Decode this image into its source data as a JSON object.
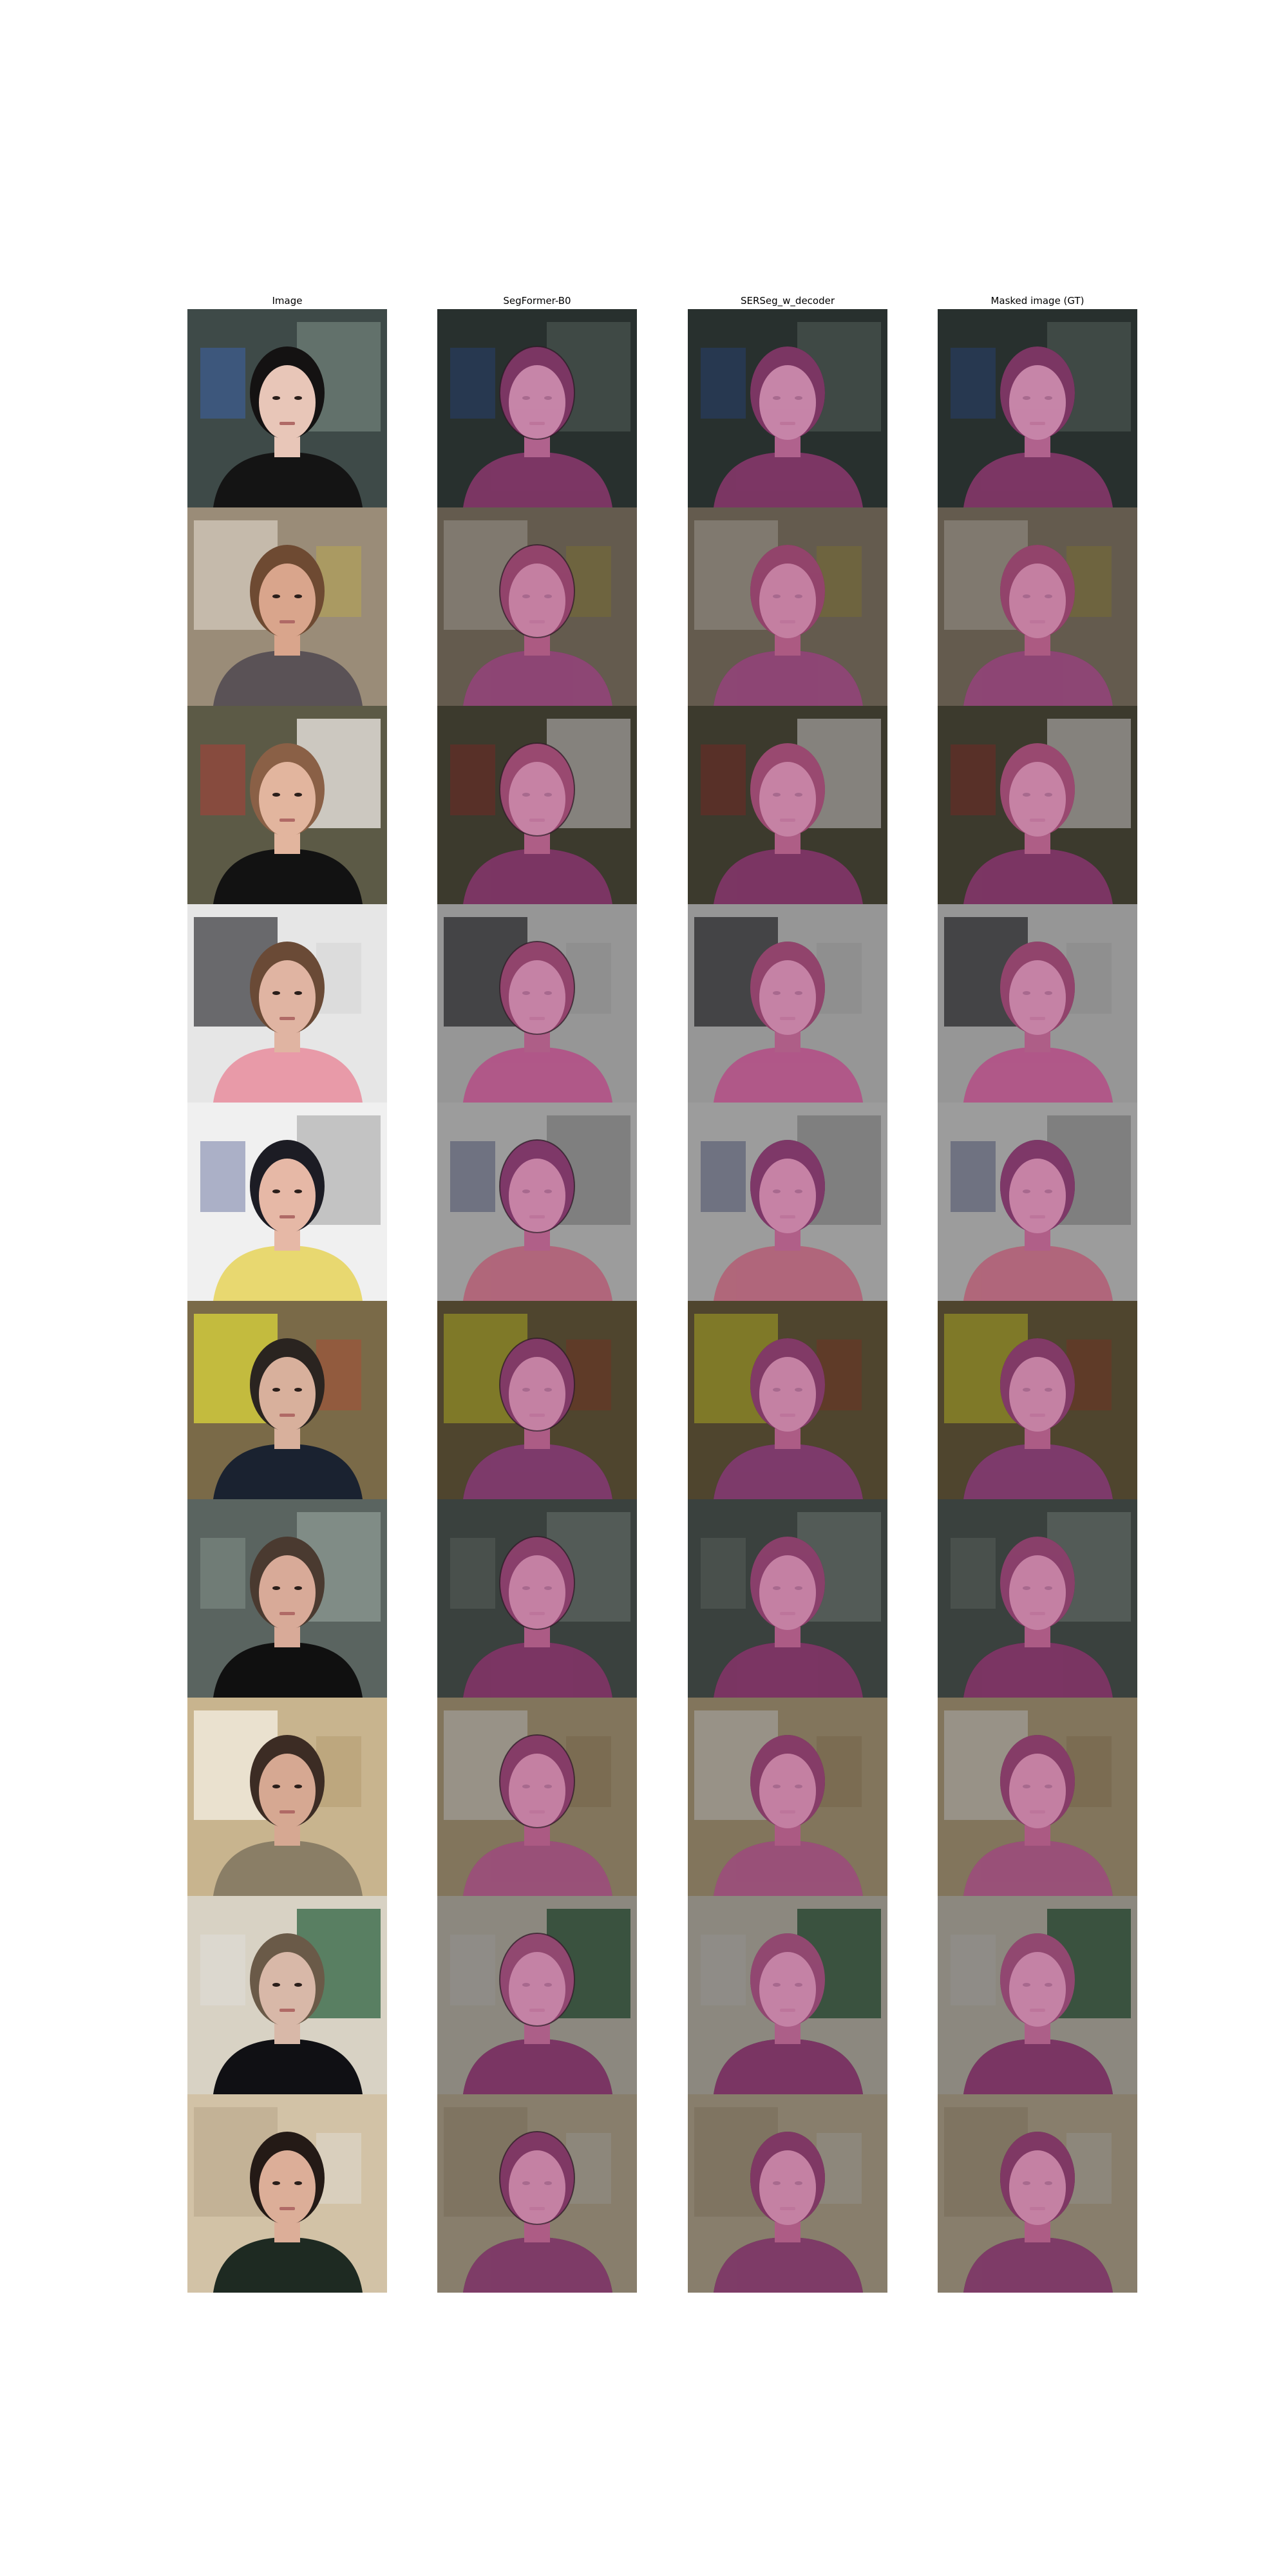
{
  "figure": {
    "columns": [
      "Image",
      "SegFormer-B0",
      "SERSeg_w_decoder",
      "Masked image (GT)"
    ],
    "mask_color": "#c0509a",
    "rows": [
      {
        "bg": "#3e4a48",
        "accent": "#6b7a74",
        "skin": "#e8c6b8",
        "hair": "#141212",
        "shirt": "#141414",
        "extra": "#3b6fe0"
      },
      {
        "bg": "#9a8c78",
        "accent": "#cfc6b8",
        "skin": "#d9a58c",
        "hair": "#6e4a32",
        "shirt": "#5a5256",
        "extra": "#c9b43a"
      },
      {
        "bg": "#5c5a46",
        "accent": "#e8e4de",
        "skin": "#e2b59e",
        "hair": "#8a6046",
        "shirt": "#121212",
        "extra": "#d83030"
      },
      {
        "bg": "#e6e6e6",
        "accent": "#4a4a4e",
        "skin": "#e0b4a2",
        "hair": "#6a4a36",
        "shirt": "#e89aa8",
        "extra": "#c8c8c8"
      },
      {
        "bg": "#f0f0f0",
        "accent": "#b8b8b8",
        "skin": "#e6b8a6",
        "hair": "#1c1c24",
        "shirt": "#e8d870",
        "extra": "#2c3a7a"
      },
      {
        "bg": "#7a6a48",
        "accent": "#d6d03c",
        "skin": "#d8b09c",
        "hair": "#2a2420",
        "shirt": "#1a2230",
        "extra": "#c0402e"
      },
      {
        "bg": "#5a6460",
        "accent": "#8a9690",
        "skin": "#d8aa98",
        "hair": "#4a3a30",
        "shirt": "#101010",
        "extra": "#9aa8a0"
      },
      {
        "bg": "#c8b48e",
        "accent": "#f2ece0",
        "skin": "#d6a892",
        "hair": "#3c2c24",
        "shirt": "#8a7e66",
        "extra": "#a89060"
      },
      {
        "bg": "#d8d2c4",
        "accent": "#3a6a4a",
        "skin": "#d8b8a8",
        "hair": "#6a5a48",
        "shirt": "#101014",
        "extra": "#e6e6e6"
      },
      {
        "bg": "#d2c2a6",
        "accent": "#bfae92",
        "skin": "#dcae98",
        "hair": "#241a16",
        "shirt": "#1e2a22",
        "extra": "#e8e8e8"
      }
    ]
  }
}
